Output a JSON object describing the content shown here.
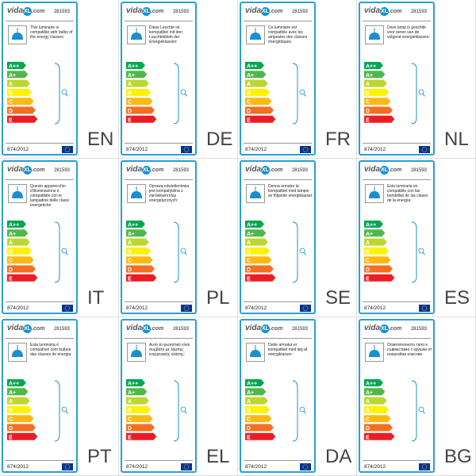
{
  "brand": [
    "vida",
    "XL",
    ".com"
  ],
  "code": "281593",
  "classes": [
    "A++",
    "A+",
    "A",
    "B",
    "C",
    "D",
    "E"
  ],
  "regulation": "874/2012",
  "labels": [
    {
      "lang": "EN",
      "text": "This luminaire is compatible with bulbs of the energy classes:"
    },
    {
      "lang": "DE",
      "text": "Diese Leuchte ist kompatibel mit den Leuchtmitteln der Energieklassen:"
    },
    {
      "lang": "FR",
      "text": "Ce luminaire est compatible avec les ampoules des classes énergétiques:"
    },
    {
      "lang": "NL",
      "text": "Deze lamp is geschikt voor peren van de volgend energieklassen:"
    },
    {
      "lang": "IT",
      "text": "Questo apparecchio d'illuminazione è compatibile con le lampadine delle classi energetiche:"
    },
    {
      "lang": "PL",
      "text": "Oprawa oświetleniowa jest kompatybilna z żarówkami klas energetycznych:"
    },
    {
      "lang": "SE",
      "text": "Denna armatur är kompatibel med lampor av följande energiklasser:"
    },
    {
      "lang": "ES",
      "text": "Esta luminaria es compatible con las bombillas de las clases de la energía:"
    },
    {
      "lang": "PT",
      "text": "Esta luminária é compatível com bulbos das classes de energia:"
    },
    {
      "lang": "EL",
      "text": "Αυτό το φωτιστικό είναι συμβατό με λάμπες ενεργειακής κλάσης:"
    },
    {
      "lang": "DA",
      "text": "Dette armatur er kompatibel med løg af energiklasser:"
    },
    {
      "lang": "BG",
      "text": "Осветителното тяло е съвместимо с крушки от енергийни класове:"
    }
  ]
}
